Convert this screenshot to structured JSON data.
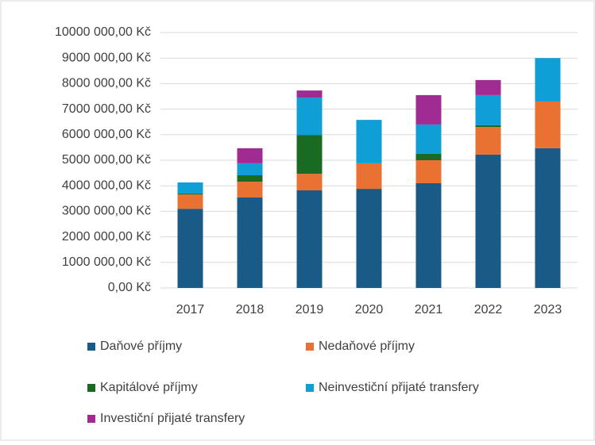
{
  "chart_data": {
    "type": "stacked_bar",
    "categories": [
      "2017",
      "2018",
      "2019",
      "2020",
      "2021",
      "2022",
      "2023"
    ],
    "series": [
      {
        "name": "Daňové příjmy",
        "color": "#195b86",
        "values": [
          3100000,
          3540000,
          3820000,
          3880000,
          4100000,
          5220000,
          5470000
        ]
      },
      {
        "name": "Nedaňové příjmy",
        "color": "#e97132",
        "values": [
          560000,
          620000,
          650000,
          1000000,
          900000,
          1080000,
          1830000
        ]
      },
      {
        "name": "Kapitálové příjmy",
        "color": "#196b24",
        "values": [
          40000,
          250000,
          1520000,
          0,
          250000,
          70000,
          0
        ]
      },
      {
        "name": "Neinvestiční přijaté transfery",
        "color": "#0f9ed5",
        "values": [
          430000,
          470000,
          1460000,
          1700000,
          1150000,
          1180000,
          1700000
        ]
      },
      {
        "name": "Investiční přijaté transfery",
        "color": "#a02b93",
        "values": [
          0,
          590000,
          280000,
          0,
          1150000,
          590000,
          0
        ]
      }
    ],
    "ylim": [
      0,
      10000000
    ],
    "yticks": [
      {
        "value": 0,
        "label": "0,00 Kč"
      },
      {
        "value": 1000000,
        "label": "1000 000,00 Kč"
      },
      {
        "value": 2000000,
        "label": "2000 000,00 Kč"
      },
      {
        "value": 3000000,
        "label": "3000 000,00 Kč"
      },
      {
        "value": 4000000,
        "label": "4000 000,00 Kč"
      },
      {
        "value": 5000000,
        "label": "5000 000,00 Kč"
      },
      {
        "value": 6000000,
        "label": "6000 000,00 Kč"
      },
      {
        "value": 7000000,
        "label": "7000 000,00 Kč"
      },
      {
        "value": 8000000,
        "label": "8000 000,00 Kč"
      },
      {
        "value": 9000000,
        "label": "9000 000,00 Kč"
      },
      {
        "value": 10000000,
        "label": "10000 000,00 Kč"
      }
    ],
    "grid": true,
    "legend": "bottom"
  }
}
